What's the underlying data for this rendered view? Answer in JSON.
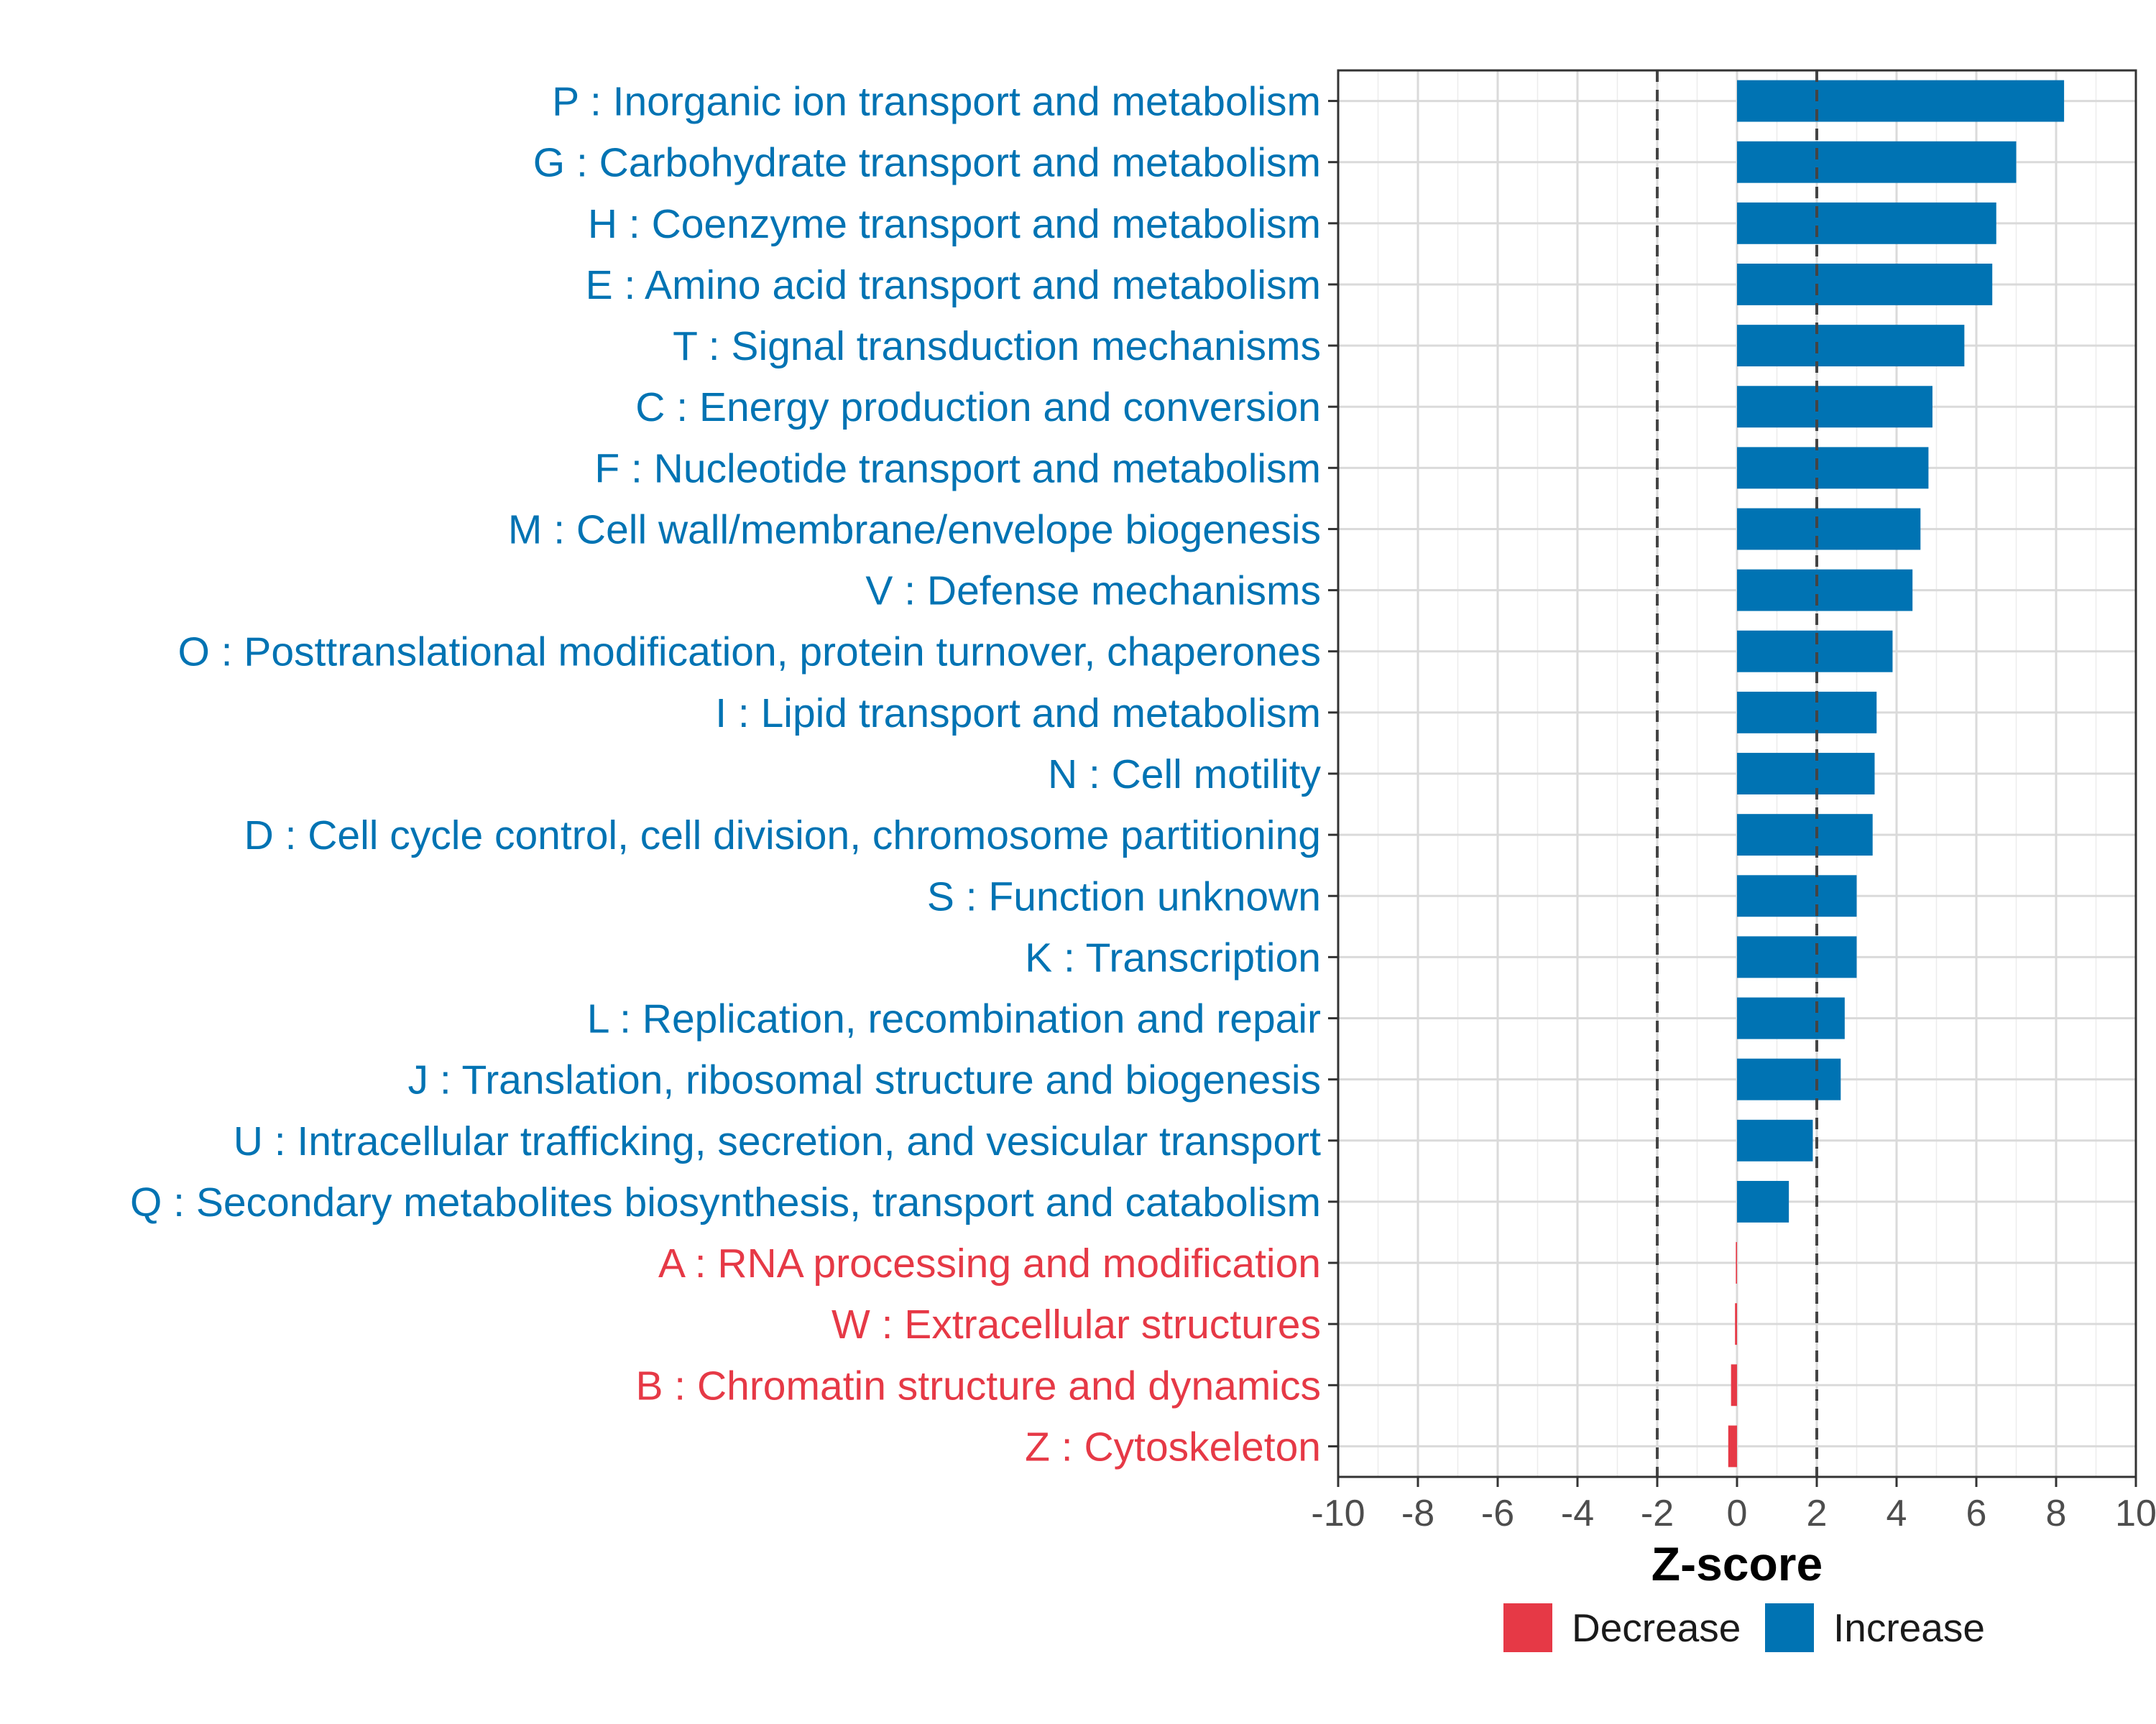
{
  "chart_data": {
    "type": "bar",
    "orientation": "horizontal",
    "xlabel": "Z-score",
    "ylabel": "",
    "xlim": [
      -10,
      10
    ],
    "xticks": [
      -10,
      -8,
      -6,
      -4,
      -2,
      0,
      2,
      4,
      6,
      8,
      10
    ],
    "grid": true,
    "threshold_lines": [
      -2,
      2
    ],
    "categories": [
      "P : Inorganic ion transport and metabolism",
      "G : Carbohydrate transport and metabolism",
      "H : Coenzyme transport and metabolism",
      "E : Amino acid transport and metabolism",
      "T : Signal transduction mechanisms",
      "C : Energy production and conversion",
      "F : Nucleotide transport and metabolism",
      "M : Cell wall/membrane/envelope biogenesis",
      "V : Defense mechanisms",
      "O : Posttranslational modification, protein turnover, chaperones",
      "I : Lipid transport and metabolism",
      "N : Cell motility",
      "D : Cell cycle control, cell division, chromosome partitioning",
      "S : Function unknown",
      "K : Transcription",
      "L : Replication, recombination and repair",
      "J : Translation, ribosomal structure and biogenesis",
      "U : Intracellular trafficking, secretion, and vesicular transport",
      "Q : Secondary metabolites biosynthesis, transport and catabolism",
      "A : RNA processing and modification",
      "W : Extracellular structures",
      "B : Chromatin structure and dynamics",
      "Z : Cytoskeleton"
    ],
    "values": [
      8.2,
      7.0,
      6.5,
      6.4,
      5.7,
      4.9,
      4.8,
      4.6,
      4.4,
      3.9,
      3.5,
      3.45,
      3.4,
      3.0,
      3.0,
      2.7,
      2.6,
      1.9,
      1.3,
      -0.03,
      -0.05,
      -0.15,
      -0.22
    ],
    "groups": [
      "Increase",
      "Increase",
      "Increase",
      "Increase",
      "Increase",
      "Increase",
      "Increase",
      "Increase",
      "Increase",
      "Increase",
      "Increase",
      "Increase",
      "Increase",
      "Increase",
      "Increase",
      "Increase",
      "Increase",
      "Increase",
      "Increase",
      "Decrease",
      "Decrease",
      "Decrease",
      "Decrease"
    ],
    "legend": [
      {
        "name": "Decrease",
        "color": "#e63946"
      },
      {
        "name": "Increase",
        "color": "#0073b3"
      }
    ],
    "legend_position": "bottom"
  }
}
